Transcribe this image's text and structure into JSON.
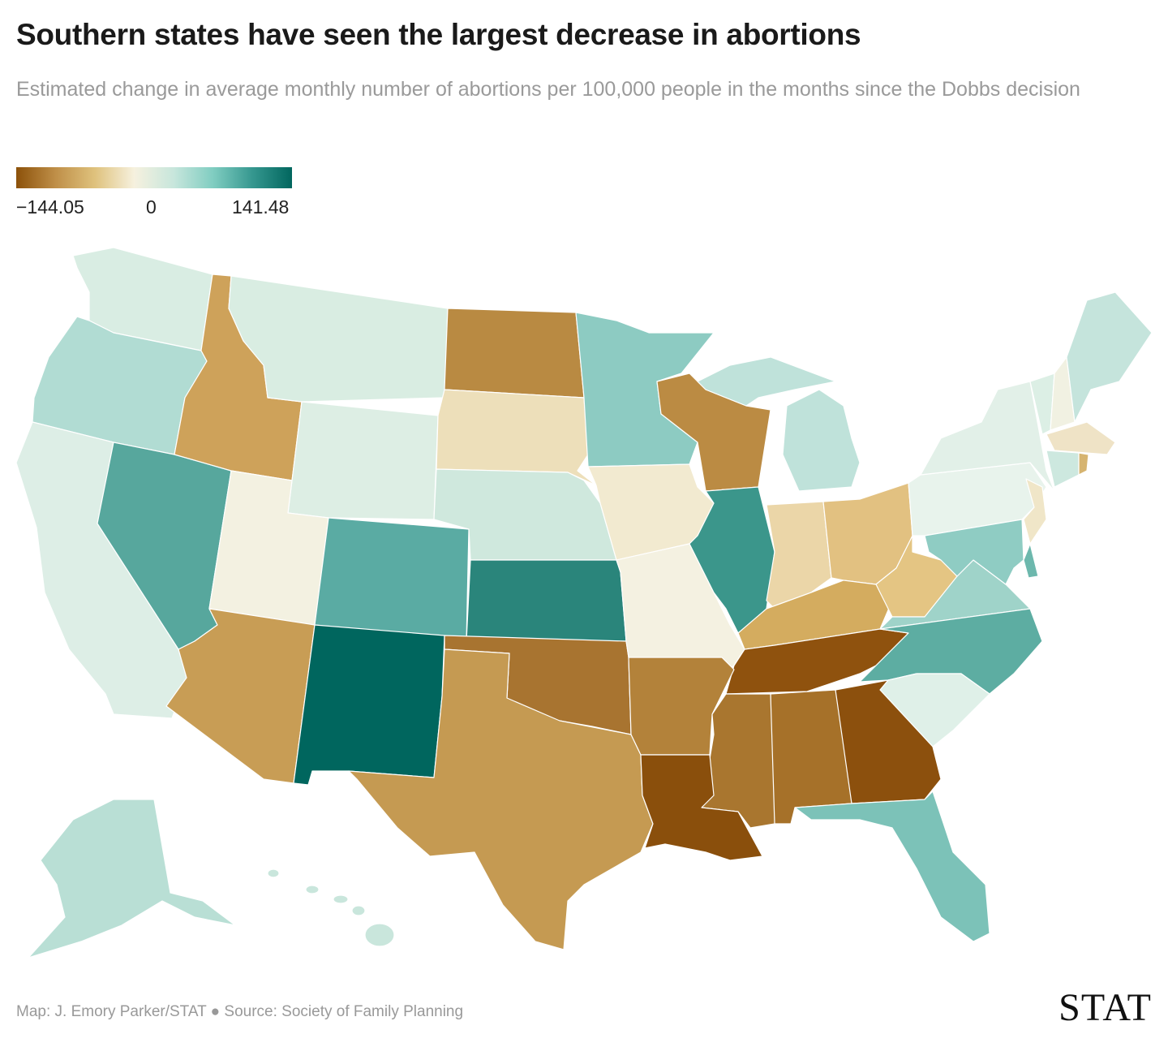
{
  "header": {
    "title": "Southern states have seen the largest decrease in abortions",
    "subtitle": "Estimated change in average monthly number of abortions per 100,000 people in the months since the Dobbs decision"
  },
  "legend": {
    "min_label": "−144.05",
    "mid_label": "0",
    "max_label": "141.48",
    "min": -144.05,
    "mid": 0,
    "max": 141.48,
    "colors": [
      "#8c510a",
      "#bf8f48",
      "#dfc27d",
      "#f6f1df",
      "#c7e6dc",
      "#80cdc1",
      "#35978f",
      "#01665e"
    ]
  },
  "map": {
    "type": "choropleth",
    "region": "United States",
    "state_colors": {
      "WA": "#d9ede3",
      "OR": "#b1dcd3",
      "CA": "#ddeee6",
      "NV": "#57a79d",
      "ID": "#cea25a",
      "MT": "#d9ede2",
      "WY": "#ddeee4",
      "UT": "#f3f1e1",
      "CO": "#5aaba3",
      "AZ": "#c89d55",
      "NM": "#00665e",
      "ND": "#b98a42",
      "SD": "#eddfba",
      "NE": "#cfe8dd",
      "KS": "#2a857b",
      "OK": "#a87430",
      "TX": "#c59a52",
      "MN": "#8dcbc2",
      "IA": "#f2ead0",
      "MO": "#f4f1e1",
      "WI": "#bb8b43",
      "IL": "#3b968b",
      "MI": "#bfe2da",
      "IN": "#ebd6a8",
      "OH": "#e2c181",
      "KY": "#d4ac5f",
      "TN": "#8f520e",
      "WV": "#e4c583",
      "VA": "#9fd3c9",
      "NC": "#5dada2",
      "SC": "#dff0e8",
      "GA": "#8c500d",
      "AL": "#a67129",
      "MS": "#a9762f",
      "AR": "#b3823a",
      "LA": "#8a4f0c",
      "FL": "#7cc2b8",
      "PA": "#e8f3ec",
      "NY": "#e2f0e8",
      "VT": "#dcefe5",
      "NH": "#f1f1e2",
      "ME": "#c5e4dc",
      "MA": "#efe3c6",
      "CT": "#cde8df",
      "RI": "#d6b470",
      "NJ": "#f0e6c8",
      "MD": "#8fccc3",
      "DE": "#6db8ad",
      "AK": "#b9dfd5",
      "HI": "#c9e6dc"
    }
  },
  "footer": {
    "credit": "Map: J. Emory Parker/STAT ● Source: Society of Family Planning",
    "logo": "STAT"
  }
}
